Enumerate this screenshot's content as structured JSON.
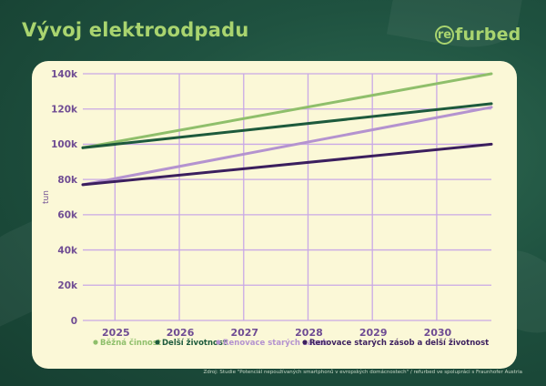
{
  "title": "Vývoj elektroodpadu",
  "logo": {
    "circle_text": "re",
    "rest_text": "furbed"
  },
  "source": "Zdroj: Studie \"Potenciál nepoužívaných smartphonů v evropských domácnostech\" / refurbed ve spolupráci s Fraunhofer Austria",
  "colors": {
    "background": "#1f5240",
    "card": "#fbf8d7",
    "grid": "#c9a9e6",
    "text": "#6f4c93"
  },
  "chart_data": {
    "type": "line",
    "title": "",
    "xlabel": "",
    "ylabel": "tun",
    "x_ticks": [
      "2025",
      "2026",
      "2027",
      "2028",
      "2029",
      "2030"
    ],
    "y_ticks": [
      "0",
      "20k",
      "40k",
      "60k",
      "80k",
      "100k",
      "120k",
      "140k"
    ],
    "xlim": [
      2024.5,
      2030.85
    ],
    "ylim": [
      0,
      140000
    ],
    "grid": true,
    "legend_position": "bottom",
    "series": [
      {
        "name": "Běžná činnost",
        "color": "#8fbf6b",
        "x": [
          2024.5,
          2030.85
        ],
        "values": [
          98000,
          140000
        ]
      },
      {
        "name": "Delší životnost",
        "color": "#1d5a3c",
        "x": [
          2024.5,
          2030.85
        ],
        "values": [
          98000,
          123000
        ]
      },
      {
        "name": "Renovace starých zásob",
        "color": "#b493cf",
        "x": [
          2024.5,
          2030.85
        ],
        "values": [
          77000,
          121000
        ]
      },
      {
        "name": "Renovace starých zásob a delší životnost",
        "color": "#3b1f5e",
        "x": [
          2024.5,
          2030.85
        ],
        "values": [
          77000,
          100000
        ]
      }
    ]
  }
}
